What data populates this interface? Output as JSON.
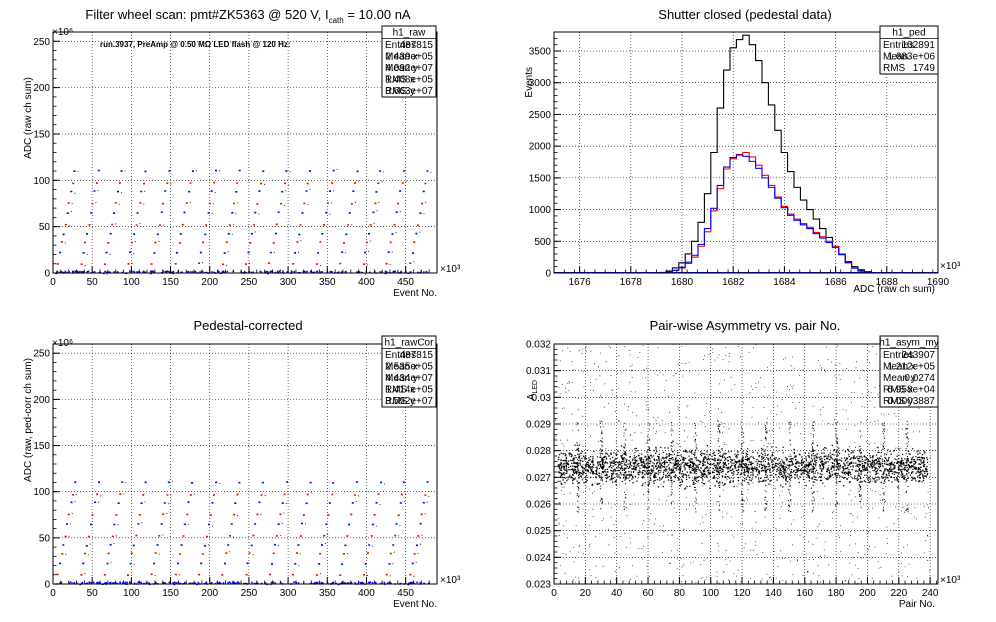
{
  "colors": {
    "black": "#000000",
    "red": "#ff0000",
    "blue": "#0000ff",
    "grid": "#000000"
  },
  "chart_data": [
    {
      "id": "raw",
      "type": "scatter",
      "title": "Filter wheel scan: pmt#ZK5363 @   520 V, I",
      "title_sub": "cath",
      "title_tail": " = 10.00 nA",
      "annotation": "run.3937, PreAmp @ 0.50 MΩ LED flash @  120 Hz:",
      "xlabel": "Event No.",
      "ylabel": "ADC (raw ch sum)",
      "xlim": [
        0,
        490
      ],
      "ylim": [
        0,
        260
      ],
      "x_multiplier": "×10³",
      "y_multiplier": "×10⁶",
      "xticks": [
        "0",
        "50",
        "100",
        "150",
        "200",
        "250",
        "300",
        "350",
        "400",
        "450"
      ],
      "yticks": [
        "0",
        "50",
        "100",
        "150",
        "200",
        "250"
      ],
      "grid": true,
      "levels": [
        0,
        10,
        22,
        33,
        42,
        52,
        65,
        75,
        88,
        97,
        110
      ],
      "cycles": [
        0,
        30,
        60,
        90,
        120,
        150,
        180,
        210,
        240,
        270,
        300,
        330,
        360,
        390,
        420,
        450
      ],
      "stats": {
        "name": "h1_raw",
        "rows": [
          [
            "Entries",
            "487815"
          ],
          [
            "Mean x",
            "2.439e+05"
          ],
          [
            "Mean y",
            "4.092e+07"
          ],
          [
            "RMS x",
            "1.408e+05"
          ],
          [
            "RMS y",
            "3.663e+07"
          ]
        ]
      }
    },
    {
      "id": "ped",
      "type": "line",
      "title": "Shutter closed (pedestal data)",
      "xlabel": "ADC (raw ch sum)",
      "ylabel": "Events",
      "xlim": [
        1675,
        1690
      ],
      "ylim": [
        0,
        3800
      ],
      "x_multiplier": "×10³",
      "xticks": [
        "1676",
        "1678",
        "1680",
        "1682",
        "1684",
        "1686",
        "1688",
        "1690"
      ],
      "yticks": [
        "0",
        "500",
        "1000",
        "1500",
        "2000",
        "2500",
        "3000",
        "3500"
      ],
      "grid": true,
      "bin_width": 0.25,
      "series": [
        {
          "color": "black",
          "x": [
            1679.25,
            1679.5,
            1679.75,
            1680,
            1680.25,
            1680.5,
            1680.75,
            1681,
            1681.25,
            1681.5,
            1681.75,
            1682,
            1682.25,
            1682.5,
            1682.75,
            1683,
            1683.25,
            1683.5,
            1683.75,
            1684,
            1684.25,
            1684.5,
            1684.75,
            1685,
            1685.25,
            1685.5,
            1685.75,
            1686,
            1686.25,
            1686.5,
            1686.75,
            1687,
            1687.25,
            1687.5,
            1687.75
          ],
          "values": [
            10,
            30,
            80,
            160,
            300,
            500,
            800,
            1250,
            1900,
            2600,
            3200,
            3550,
            3680,
            3750,
            3600,
            3350,
            3000,
            2650,
            2250,
            1900,
            1600,
            1350,
            1150,
            1000,
            850,
            700,
            560,
            420,
            290,
            180,
            100,
            50,
            20,
            8,
            2
          ]
        },
        {
          "color": "red",
          "x": [
            1679.25,
            1679.5,
            1679.75,
            1680,
            1680.25,
            1680.5,
            1680.75,
            1681,
            1681.25,
            1681.5,
            1681.75,
            1682,
            1682.25,
            1682.5,
            1682.75,
            1683,
            1683.25,
            1683.5,
            1683.75,
            1684,
            1684.25,
            1684.5,
            1684.75,
            1685,
            1685.25,
            1685.5,
            1685.75,
            1686,
            1686.25,
            1686.5,
            1686.75,
            1687,
            1687.25,
            1687.5,
            1687.75
          ],
          "values": [
            5,
            15,
            40,
            80,
            150,
            250,
            420,
            650,
            980,
            1330,
            1640,
            1800,
            1870,
            1900,
            1830,
            1700,
            1540,
            1380,
            1200,
            1050,
            930,
            850,
            780,
            720,
            640,
            570,
            500,
            420,
            300,
            170,
            80,
            30,
            10,
            4,
            1
          ]
        },
        {
          "color": "blue",
          "x": [
            1679.25,
            1679.5,
            1679.75,
            1680,
            1680.25,
            1680.5,
            1680.75,
            1681,
            1681.25,
            1681.5,
            1681.75,
            1682,
            1682.25,
            1682.5,
            1682.75,
            1683,
            1683.25,
            1683.5,
            1683.75,
            1684,
            1684.25,
            1684.5,
            1684.75,
            1685,
            1685.25,
            1685.5,
            1685.75,
            1686,
            1686.25,
            1686.5,
            1686.75,
            1687,
            1687.25,
            1687.5,
            1687.75
          ],
          "values": [
            5,
            15,
            40,
            90,
            170,
            280,
            450,
            700,
            1020,
            1380,
            1670,
            1820,
            1860,
            1840,
            1760,
            1650,
            1500,
            1350,
            1180,
            1030,
            910,
            830,
            760,
            700,
            620,
            550,
            480,
            400,
            290,
            160,
            75,
            30,
            10,
            3,
            1
          ]
        }
      ],
      "stats": {
        "name": "h1_ped",
        "rows": [
          [
            "Entries",
            "102891"
          ],
          [
            "Mean",
            "1.683e+06"
          ],
          [
            "RMS",
            "1749"
          ]
        ]
      }
    },
    {
      "id": "rawCor",
      "type": "scatter",
      "title": "Pedestal-corrected",
      "xlabel": "Event No.",
      "ylabel": "ADC (raw, ped-corr ch sum)",
      "xlim": [
        0,
        490
      ],
      "ylim": [
        0,
        260
      ],
      "x_multiplier": "×10³",
      "y_multiplier": "×10⁶",
      "xticks": [
        "0",
        "50",
        "100",
        "150",
        "200",
        "250",
        "300",
        "350",
        "400",
        "450"
      ],
      "yticks": [
        "0",
        "50",
        "100",
        "150",
        "200",
        "250"
      ],
      "grid": true,
      "levels": [
        0,
        10,
        22,
        33,
        42,
        52,
        65,
        75,
        88,
        97,
        110
      ],
      "cycles": [
        0,
        30,
        60,
        90,
        120,
        150,
        180,
        210,
        240,
        270,
        300,
        330,
        360,
        390,
        420,
        450
      ],
      "stats": {
        "name": "h1_rawCor",
        "rows": [
          [
            "Entries",
            "487815"
          ],
          [
            "Mean x",
            "2.535e+05"
          ],
          [
            "Mean y",
            "4.434e+07"
          ],
          [
            "RMS x",
            "1.414e+05"
          ],
          [
            "RMS y",
            "3.592e+07"
          ]
        ]
      }
    },
    {
      "id": "asym",
      "type": "scatter",
      "title": "Pair-wise Asymmetry vs. pair No.",
      "xlabel": "Pair No.",
      "ylabel": "A",
      "ylabel_sub": "LED",
      "xlim": [
        0,
        245
      ],
      "ylim": [
        0.023,
        0.032
      ],
      "x_multiplier": "×10³",
      "xticks": [
        "0",
        "20",
        "40",
        "60",
        "80",
        "100",
        "120",
        "140",
        "160",
        "180",
        "200",
        "220",
        "240"
      ],
      "yticks": [
        "0.023",
        "0.024",
        "0.025",
        "0.026",
        "0.027",
        "0.028",
        "0.029",
        "0.03",
        "0.031",
        "0.032"
      ],
      "grid": true,
      "band_center": 0.0274,
      "spikes": [
        15,
        30,
        45,
        60,
        75,
        90,
        105,
        120,
        135,
        150,
        165,
        180,
        195,
        210,
        225
      ],
      "stats": {
        "name": "h1_asym_my",
        "rows": [
          [
            "Entries",
            "243907"
          ],
          [
            "Mean x",
            "1.212e+05"
          ],
          [
            "Mean y",
            "0.0274"
          ],
          [
            "RMS x",
            "6.958e+04"
          ],
          [
            "RMS y",
            "0.0003887"
          ]
        ]
      }
    }
  ]
}
